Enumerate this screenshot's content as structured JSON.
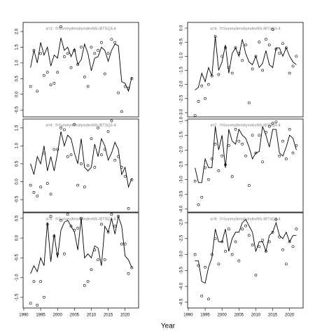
{
  "xlabel": "Year",
  "chart_data": [
    {
      "type": "line",
      "title": "a=3 : f=SurveydensityindexNS-IBTSQ3-4",
      "x": [
        1992,
        1993,
        1994,
        1995,
        1996,
        1997,
        1998,
        1999,
        2000,
        2001,
        2002,
        2003,
        2004,
        2005,
        2006,
        2007,
        2008,
        2009,
        2010,
        2011,
        2012,
        2013,
        2014,
        2015,
        2016,
        2017,
        2018,
        2019,
        2020,
        2021,
        2022
      ],
      "series": [
        {
          "style": "line",
          "color": "#000000",
          "values": [
            0.85,
            1.4,
            1.0,
            1.65,
            1.25,
            1.5,
            0.9,
            1.25,
            1.15,
            1.8,
            1.4,
            1.5,
            1.2,
            1.45,
            0.95,
            1.1,
            1.6,
            1.3,
            0.75,
            1.15,
            1.2,
            1.5,
            1.4,
            1.05,
            1.4,
            1.6,
            1.55,
            0.4,
            0.35,
            0.1,
            0.55
          ]
        },
        {
          "style": "points",
          "color": "#000000",
          "values": [
            0.25,
            1.4,
            0.1,
            1.3,
            0.6,
            0.7,
            0.3,
            0.35,
            0.7,
            2.15,
            1.2,
            1.3,
            0.85,
            1.4,
            0.95,
            1.5,
            0.55,
            0.25,
            1.5,
            1.3,
            1.4,
            1.65,
            0.65,
            1.3,
            1.75,
            1.65,
            0.05,
            -0.55,
            0.25,
            0.2,
            0.5
          ]
        }
      ],
      "xlim": [
        1989.8,
        2024
      ],
      "ylim": [
        -0.72,
        2.29
      ],
      "yticks": [
        -0.5,
        {
          "value": 0,
          "label": "0.0"
        },
        0.5,
        {
          "value": 1,
          "label": "1.0"
        },
        1.5,
        {
          "value": 2,
          "label": "2.0"
        }
      ]
    },
    {
      "type": "line",
      "title": "a=4 : f=SurveydensityindexNS-IBTSQ3-4",
      "x": [
        1992,
        1993,
        1994,
        1995,
        1996,
        1997,
        1998,
        1999,
        2000,
        2001,
        2002,
        2003,
        2004,
        2005,
        2006,
        2007,
        2008,
        2009,
        2010,
        2011,
        2012,
        2013,
        2014,
        2015,
        2016,
        2017,
        2018,
        2019,
        2020,
        2021,
        2022
      ],
      "series": [
        {
          "style": "line",
          "color": "#000000",
          "values": [
            0.5,
            0.2,
            0.7,
            0.5,
            1.0,
            0.3,
            0.7,
            0.3,
            0.8,
            1.4,
            1.0,
            1.3,
            1.2,
            0.8,
            0.5,
            1.2,
            0.4,
            0.3,
            0.4,
            1.05,
            0.7,
            1.2,
            1.0,
            0.6,
            0.8,
            1.1,
            0.9,
            0.2,
            0.4,
            -0.15,
            0.1
          ]
        },
        {
          "style": "points",
          "color": "#000000",
          "values": [
            -0.1,
            -0.3,
            -0.4,
            -0.15,
            0.8,
            -0.05,
            -0.35,
            0.9,
            0.9,
            1.5,
            1.45,
            0.7,
            0.75,
            1.6,
            -0.1,
            0.5,
            -0.15,
            0.45,
            1.2,
            0.4,
            1.5,
            0.75,
            0.9,
            1.4,
            1.7,
            0.6,
            0.7,
            0.4,
            0.15,
            -0.75,
            0.05
          ]
        }
      ],
      "xlim": [
        1989.8,
        2024
      ],
      "ylim": [
        -0.85,
        1.75
      ],
      "yticks": [
        -0.5,
        {
          "value": 0,
          "label": "0.0"
        },
        0.5,
        {
          "value": 1,
          "label": "1.0"
        },
        1.5
      ]
    },
    {
      "type": "line",
      "title": "a=5 : f=SurveydensityindexNS-IBTSQ3-4",
      "x": [
        1992,
        1993,
        1994,
        1995,
        1996,
        1997,
        1998,
        1999,
        2000,
        2001,
        2002,
        2003,
        2004,
        2005,
        2006,
        2007,
        2008,
        2009,
        2010,
        2011,
        2012,
        2013,
        2014,
        2015,
        2016,
        2017,
        2018,
        2019,
        2020,
        2021,
        2022
      ],
      "series": [
        {
          "style": "line",
          "color": "#000000",
          "values": [
            -0.9,
            -0.7,
            -0.85,
            -0.5,
            -0.7,
            0.4,
            -0.6,
            0.1,
            -0.5,
            0.2,
            0.4,
            0.45,
            0.3,
            0.15,
            -0.3,
            0.5,
            -0.5,
            -0.4,
            -0.5,
            -0.2,
            -0.25,
            -0.7,
            0.3,
            0.15,
            0.5,
            0.1,
            0.55,
            0.3,
            -0.45,
            -0.55,
            -0.75
          ]
        },
        {
          "style": "points",
          "color": "#000000",
          "values": [
            -1.65,
            -1.1,
            -1.7,
            -1.1,
            -1.5,
            0.35,
            0.55,
            0.05,
            -0.4,
            0.45,
            -0.4,
            0.6,
            0.3,
            0.2,
            0.25,
            0.5,
            -1.2,
            -1.1,
            -0.8,
            -0.3,
            -0.55,
            0.35,
            -0.55,
            0.15,
            0.6,
            0.3,
            0.55,
            -0.15,
            -0.15,
            -0.9,
            -0.75
          ]
        }
      ],
      "xlim": [
        1989.8,
        2024
      ],
      "ylim": [
        -1.77,
        0.64
      ],
      "xticks": [
        1990,
        1995,
        2000,
        2005,
        2010,
        2015,
        2020
      ],
      "yticks": [
        -1.5,
        {
          "value": -1,
          "label": "-1.0"
        },
        -0.5,
        {
          "value": 0,
          "label": "0.0"
        },
        0.5
      ]
    },
    {
      "type": "line",
      "title": "a=6 : f=SurveydensityindexNS-IBTSQ3-4",
      "x": [
        1992,
        1993,
        1994,
        1995,
        1996,
        1997,
        1998,
        1999,
        2000,
        2001,
        2002,
        2003,
        2004,
        2005,
        2006,
        2007,
        2008,
        2009,
        2010,
        2011,
        2012,
        2013,
        2014,
        2015,
        2016,
        2017,
        2018,
        2019,
        2020,
        2021,
        2022
      ],
      "series": [
        {
          "style": "line",
          "color": "#000000",
          "values": [
            -2.2,
            -2.1,
            -1.6,
            -1.9,
            -1.4,
            -1.7,
            -0.3,
            -1.5,
            -1.2,
            -0.6,
            -1.6,
            -0.9,
            -0.7,
            -1.0,
            -0.4,
            -0.9,
            -1.2,
            -1.3,
            -1.0,
            -1.4,
            -1.25,
            -0.8,
            -1.3,
            -1.4,
            -0.7,
            -0.7,
            -1.0,
            -0.7,
            -1.0,
            -1.2,
            -1.3
          ]
        },
        {
          "style": "points",
          "color": "#000000",
          "values": [
            -3.1,
            -2.6,
            -2.05,
            -2.5,
            -2.0,
            -1.7,
            -0.3,
            -1.65,
            -1.0,
            -0.7,
            -1.4,
            -1.6,
            -0.7,
            -0.9,
            -1.15,
            -0.6,
            -2.65,
            -1.45,
            -1.0,
            -0.5,
            -1.5,
            -0.4,
            -0.6,
            -0.05,
            -0.75,
            -0.9,
            -0.55,
            -0.7,
            -1.6,
            -1.35,
            -1.0
          ]
        }
      ],
      "xlim": [
        1989.8,
        2024
      ],
      "ylim": [
        -3.15,
        0.2
      ],
      "yticks": [
        {
          "value": -3,
          "label": "-3.0"
        },
        -2.5,
        {
          "value": -2,
          "label": "-2.0"
        },
        -1.5,
        {
          "value": -1,
          "label": "-1.0"
        },
        -0.5,
        {
          "value": 0,
          "label": "0.0"
        }
      ]
    },
    {
      "type": "line",
      "title": "a=7 : f=SurveydensityindexNS-IBTSQ3-4",
      "x": [
        1992,
        1993,
        1994,
        1995,
        1996,
        1997,
        1998,
        1999,
        2000,
        2001,
        2002,
        2003,
        2004,
        2005,
        2006,
        2007,
        2008,
        2009,
        2010,
        2011,
        2012,
        2013,
        2014,
        2015,
        2016,
        2017,
        2018,
        2019,
        2020,
        2021,
        2022
      ],
      "series": [
        {
          "style": "line",
          "color": "#000000",
          "values": [
            -2.6,
            -3.1,
            -3.1,
            -2.3,
            -2.6,
            -2.6,
            -1.2,
            -2.0,
            -1.5,
            -2.6,
            -1.3,
            -1.7,
            -1.8,
            -1.3,
            -1.5,
            -1.6,
            -1.9,
            -2.3,
            -2.1,
            -2.05,
            -1.2,
            -1.5,
            -1.9,
            -1.3,
            -1.3,
            -2.1,
            -2.2,
            -1.9,
            -1.5,
            -1.6,
            -2.0
          ]
        },
        {
          "style": "points",
          "color": "#000000",
          "values": [
            -3.05,
            -3.85,
            -3.6,
            -2.6,
            -3.0,
            -2.3,
            -1.8,
            -2.7,
            -2.2,
            -2.5,
            -1.85,
            -2.9,
            -1.3,
            -1.7,
            -1.8,
            -2.2,
            -3.2,
            -1.5,
            -2.1,
            -1.5,
            -2.4,
            -1.4,
            -1.2,
            -1.1,
            -1.05,
            -2.2,
            -1.7,
            -2.3,
            -1.3,
            -2.1,
            -1.85
          ]
        }
      ],
      "xlim": [
        1989.8,
        2024
      ],
      "ylim": [
        -4.1,
        -0.95
      ],
      "yticks": [
        {
          "value": -4,
          "label": "-4.0"
        },
        -3.5,
        {
          "value": -3,
          "label": "-3.0"
        },
        -2.5,
        {
          "value": -2,
          "label": "-2.0"
        },
        -1.5,
        {
          "value": -1,
          "label": "-1.0"
        }
      ]
    },
    {
      "type": "line",
      "title": "a=8 : f=SurveydensityindexNS-IBTSQ3-4",
      "x": [
        1992,
        1993,
        1994,
        1995,
        1996,
        1997,
        1998,
        1999,
        2000,
        2001,
        2002,
        2003,
        2004,
        2005,
        2006,
        2007,
        2008,
        2009,
        2010,
        2011,
        2012,
        2013,
        2014,
        2015,
        2016,
        2017,
        2018,
        2019,
        2020,
        2021,
        2022
      ],
      "series": [
        {
          "style": "line",
          "color": "#000000",
          "values": [
            -3.2,
            -3.2,
            -3.85,
            -3.9,
            -3.4,
            -3.1,
            -2.2,
            -2.6,
            -2.6,
            -2.2,
            -2.9,
            -2.5,
            -2.3,
            -2.3,
            -2.0,
            -1.9,
            -2.1,
            -2.3,
            -2.9,
            -2.6,
            -2.6,
            -2.9,
            -2.4,
            -2.3,
            -2.0,
            -2.4,
            -2.5,
            -2.3,
            -2.6,
            -2.4,
            -2.4
          ]
        },
        {
          "style": "points",
          "color": "#000000",
          "values": [
            -3.0,
            -3.35,
            -4.3,
            -3.4,
            -4.4,
            -3.0,
            -2.5,
            -3.3,
            -2.6,
            -2.9,
            -2.2,
            -3.0,
            -2.6,
            -3.2,
            -2.2,
            -2.1,
            -2.4,
            -2.7,
            -3.65,
            -2.75,
            -2.55,
            -2.9,
            -2.6,
            -2.3,
            -1.9,
            -2.45,
            -2.85,
            -3.3,
            -2.6,
            -2.75,
            -2.2
          ]
        }
      ],
      "xlim": [
        1989.8,
        2024
      ],
      "ylim": [
        -4.68,
        -1.69
      ],
      "xticks": [
        1990,
        1995,
        2000,
        2005,
        2010,
        2015,
        2020
      ],
      "yticks": [
        -4.5,
        {
          "value": -4,
          "label": "-4.0"
        },
        -3.5,
        {
          "value": -3,
          "label": "-3.0"
        },
        -2.5,
        {
          "value": -2,
          "label": "-2.0"
        }
      ]
    }
  ]
}
